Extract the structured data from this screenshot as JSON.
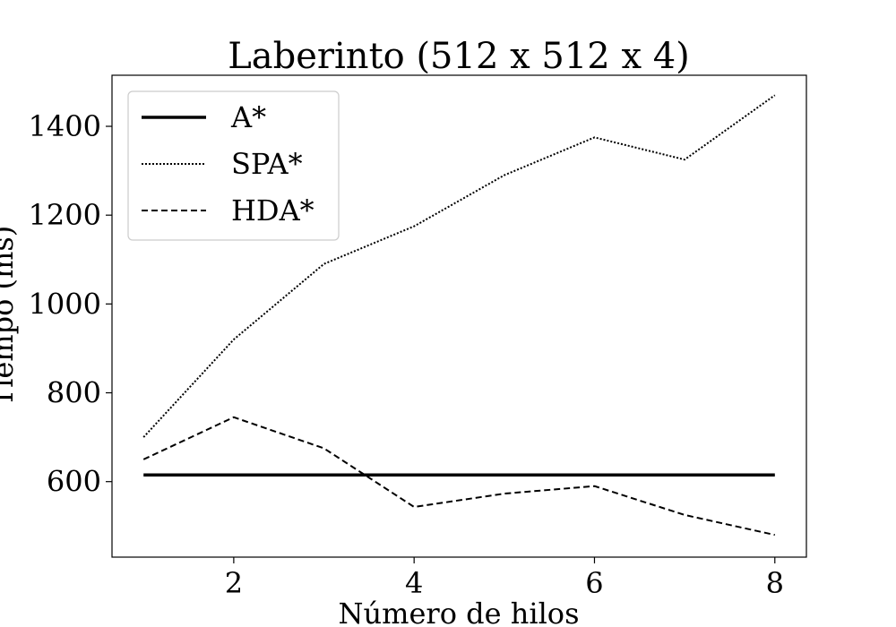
{
  "chart_data": {
    "type": "line",
    "title": "Laberinto (512 x 512 x 4)",
    "xlabel": "Número de hilos",
    "ylabel": "Tiempo (ms)",
    "x": [
      1,
      2,
      3,
      4,
      5,
      6,
      7,
      8
    ],
    "xlim": [
      0.65,
      8.35
    ],
    "ylim": [
      430,
      1515
    ],
    "xticks": [
      2,
      4,
      6,
      8
    ],
    "yticks": [
      600,
      800,
      1000,
      1200,
      1400
    ],
    "grid": false,
    "legend_position": "top-left",
    "series": [
      {
        "name": "A*",
        "style": "solid",
        "color": "#000000",
        "values": [
          615,
          615,
          615,
          615,
          615,
          615,
          615,
          615
        ]
      },
      {
        "name": "SPA*",
        "style": "dotted",
        "color": "#000000",
        "values": [
          700,
          920,
          1090,
          1175,
          1290,
          1375,
          1325,
          1470
        ]
      },
      {
        "name": "HDA*",
        "style": "dashed",
        "color": "#000000",
        "values": [
          650,
          745,
          675,
          543,
          573,
          590,
          525,
          480
        ]
      }
    ]
  }
}
